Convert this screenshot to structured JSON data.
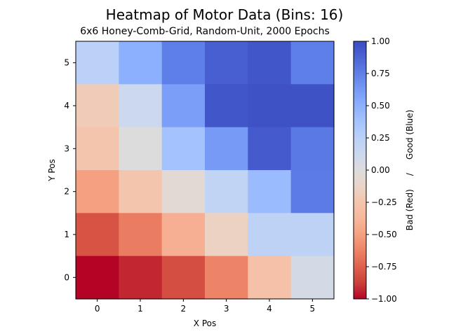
{
  "chart_data": {
    "type": "heatmap",
    "title": "Heatmap of Motor Data (Bins: 16)",
    "subtitle": "6x6 Honey-Comb-Grid, Random-Unit, 2000 Epochs",
    "xlabel": "X Pos",
    "ylabel": "Y Pos",
    "x_ticks": [
      "0",
      "1",
      "2",
      "3",
      "4",
      "5"
    ],
    "y_ticks": [
      "0",
      "1",
      "2",
      "3",
      "4",
      "5"
    ],
    "xlim": [
      -0.5,
      5.5
    ],
    "ylim": [
      -0.5,
      5.5
    ],
    "colormap": "coolwarm",
    "color_range": [
      -1.0,
      1.0
    ],
    "colorbar": {
      "label": "Bad (Red)     /     Good (Blue)",
      "ticks": [
        1.0,
        0.75,
        0.5,
        0.25,
        0.0,
        -0.25,
        -0.5,
        -0.75,
        -1.0
      ],
      "tick_labels": [
        "1.00",
        "0.75",
        "0.50",
        "0.25",
        "0.00",
        "−0.25",
        "−0.50",
        "−0.75",
        "−1.00"
      ],
      "colors": [
        "#b40426",
        "#cc403a",
        "#de614d",
        "#ed8366",
        "#f5a081",
        "#f7b89c",
        "#f4c5ad",
        "#ead5c9",
        "#dddcdc",
        "#cbd8ee",
        "#bbd1f8",
        "#a5c3fe",
        "#8db0fe",
        "#7699f6",
        "#5f7fe8",
        "#4b64d5",
        "#3b4cc0"
      ]
    },
    "rows": [
      {
        "y": 5,
        "values": [
          0.25,
          0.5,
          0.75,
          0.9,
          0.95,
          0.75
        ]
      },
      {
        "y": 4,
        "values": [
          -0.2,
          0.12,
          0.6,
          0.95,
          0.97,
          0.97
        ]
      },
      {
        "y": 3,
        "values": [
          -0.25,
          0.0,
          0.38,
          0.62,
          0.92,
          0.78
        ]
      },
      {
        "y": 2,
        "values": [
          -0.5,
          -0.25,
          -0.05,
          0.2,
          0.43,
          0.77
        ]
      },
      {
        "y": 1,
        "values": [
          -0.8,
          -0.65,
          -0.42,
          -0.15,
          0.23,
          0.23
        ]
      },
      {
        "y": 0,
        "values": [
          -1.0,
          -0.93,
          -0.82,
          -0.62,
          -0.28,
          0.06
        ]
      }
    ]
  }
}
